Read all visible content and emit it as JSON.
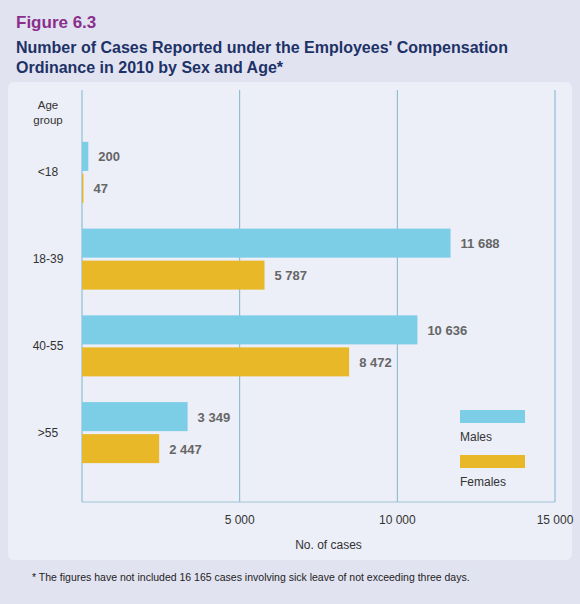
{
  "chart_data": {
    "type": "bar",
    "orientation": "horizontal",
    "figure": "Figure 6.3",
    "title": "Number of Cases Reported under the Employees' Compensation Ordinance in 2010 by Sex and Age*",
    "y_label": "Age group",
    "x_label": "No. of cases",
    "footnote": "* The figures have not included 16 165 cases involving sick leave of not exceeding three days.",
    "categories": [
      "<18",
      "18-39",
      "40-55",
      ">55"
    ],
    "series": [
      {
        "name": "Males",
        "color": "#7ccde6",
        "values": [
          200,
          11688,
          10636,
          3349
        ],
        "value_labels": [
          "200",
          "11 688",
          "10 636",
          "3 349"
        ]
      },
      {
        "name": "Females",
        "color": "#e8b828",
        "values": [
          47,
          5787,
          8472,
          2447
        ],
        "value_labels": [
          "47",
          "5 787",
          "8 472",
          "2 447"
        ]
      }
    ],
    "xlim": [
      0,
      15000
    ],
    "xticks": [
      {
        "value": 5000,
        "label": "5 000"
      },
      {
        "value": 10000,
        "label": "10 000"
      },
      {
        "value": 15000,
        "label": "15 000"
      }
    ],
    "grid": true,
    "data_labels": true,
    "legend": "lower right"
  }
}
